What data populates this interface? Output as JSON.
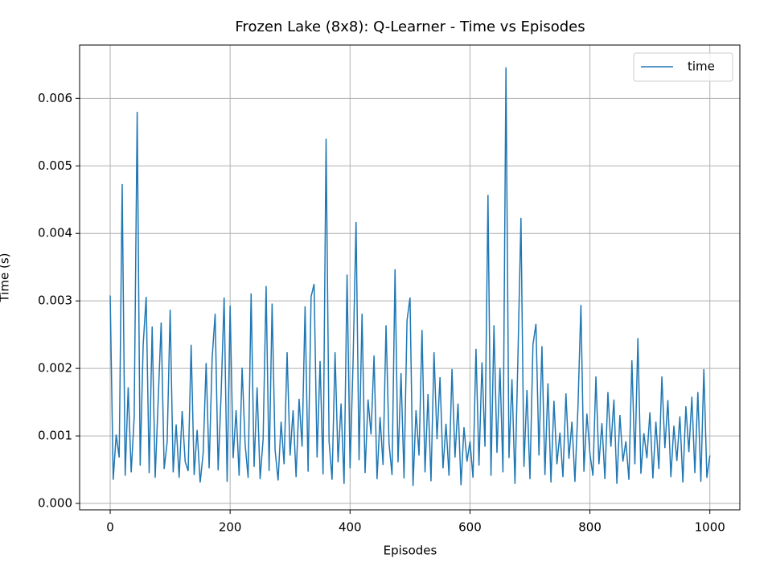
{
  "chart_data": {
    "type": "line",
    "title": "Frozen Lake (8x8): Q-Learner - Time vs Episodes",
    "x_label": "Episodes",
    "y_label": "Time (s)",
    "x": [
      0,
      5,
      10,
      15,
      20,
      25,
      30,
      35,
      40,
      45,
      50,
      55,
      60,
      65,
      70,
      75,
      80,
      85,
      90,
      95,
      100,
      105,
      110,
      115,
      120,
      125,
      130,
      135,
      140,
      145,
      150,
      155,
      160,
      165,
      170,
      175,
      180,
      185,
      190,
      195,
      200,
      205,
      210,
      215,
      220,
      225,
      230,
      235,
      240,
      245,
      250,
      255,
      260,
      265,
      270,
      275,
      280,
      285,
      290,
      295,
      300,
      305,
      310,
      315,
      320,
      325,
      330,
      335,
      340,
      345,
      350,
      355,
      360,
      365,
      370,
      375,
      380,
      385,
      390,
      395,
      400,
      405,
      410,
      415,
      420,
      425,
      430,
      435,
      440,
      445,
      450,
      455,
      460,
      465,
      470,
      475,
      480,
      485,
      490,
      495,
      500,
      505,
      510,
      515,
      520,
      525,
      530,
      535,
      540,
      545,
      550,
      555,
      560,
      565,
      570,
      575,
      580,
      585,
      590,
      595,
      600,
      605,
      610,
      615,
      620,
      625,
      630,
      635,
      640,
      645,
      650,
      655,
      660,
      665,
      670,
      675,
      680,
      685,
      690,
      695,
      700,
      705,
      710,
      715,
      720,
      725,
      730,
      735,
      740,
      745,
      750,
      755,
      760,
      765,
      770,
      775,
      780,
      785,
      790,
      795,
      800,
      805,
      810,
      815,
      820,
      825,
      830,
      835,
      840,
      845,
      850,
      855,
      860,
      865,
      870,
      875,
      880,
      885,
      890,
      895,
      900,
      905,
      910,
      915,
      920,
      925,
      930,
      935,
      940,
      945,
      950,
      955,
      960,
      965,
      970,
      975,
      980,
      985,
      990,
      995,
      1000
    ],
    "series": [
      {
        "name": "time",
        "color": "#1f77b4",
        "values": [
          0.00308,
          0.00035,
          0.00102,
          0.00068,
          0.00473,
          0.00041,
          0.00172,
          0.00046,
          0.00128,
          0.0058,
          0.00056,
          0.00235,
          0.00306,
          0.00045,
          0.00262,
          0.00038,
          0.00152,
          0.00268,
          0.00051,
          0.00091,
          0.00287,
          0.00046,
          0.00117,
          0.00038,
          0.00137,
          0.00062,
          0.00048,
          0.00235,
          0.00042,
          0.00109,
          0.00031,
          0.00074,
          0.00208,
          0.00052,
          0.00215,
          0.00281,
          0.00049,
          0.00162,
          0.00305,
          0.00032,
          0.00293,
          0.00067,
          0.00138,
          0.00041,
          0.00201,
          0.00088,
          0.00038,
          0.00311,
          0.00054,
          0.00172,
          0.00036,
          0.00095,
          0.00322,
          0.00048,
          0.00296,
          0.00079,
          0.00034,
          0.00121,
          0.00058,
          0.00224,
          0.00071,
          0.00138,
          0.00039,
          0.00155,
          0.00084,
          0.00292,
          0.00047,
          0.00306,
          0.00325,
          0.00068,
          0.00211,
          0.00043,
          0.0054,
          0.00092,
          0.00035,
          0.00224,
          0.00061,
          0.00148,
          0.00029,
          0.00339,
          0.00052,
          0.00208,
          0.00417,
          0.00064,
          0.00281,
          0.00045,
          0.00154,
          0.00102,
          0.00219,
          0.00036,
          0.00128,
          0.00057,
          0.00264,
          0.00089,
          0.00042,
          0.00347,
          0.00061,
          0.00193,
          0.00037,
          0.00271,
          0.00305,
          0.00026,
          0.00138,
          0.00071,
          0.00257,
          0.00046,
          0.00162,
          0.00033,
          0.00224,
          0.00095,
          0.00187,
          0.00052,
          0.00118,
          0.00041,
          0.00199,
          0.00068,
          0.00148,
          0.00027,
          0.00113,
          0.00062,
          0.00092,
          0.00038,
          0.00229,
          0.00056,
          0.00209,
          0.00084,
          0.00457,
          0.00041,
          0.00264,
          0.00075,
          0.00201,
          0.00046,
          0.00646,
          0.00067,
          0.00184,
          0.00029,
          0.00219,
          0.00423,
          0.00054,
          0.00168,
          0.00036,
          0.00235,
          0.00266,
          0.00071,
          0.00233,
          0.00042,
          0.00178,
          0.00031,
          0.00152,
          0.00058,
          0.00105,
          0.00039,
          0.00163,
          0.00066,
          0.00121,
          0.00032,
          0.00141,
          0.00294,
          0.00047,
          0.00133,
          0.00074,
          0.00041,
          0.00188,
          0.00058,
          0.00119,
          0.00036,
          0.00165,
          0.00084,
          0.00154,
          0.00029,
          0.00131,
          0.00062,
          0.00092,
          0.00035,
          0.00212,
          0.00058,
          0.00245,
          0.00044,
          0.00104,
          0.00067,
          0.00135,
          0.00037,
          0.00121,
          0.00051,
          0.00188,
          0.00082,
          0.00153,
          0.00039,
          0.00115,
          0.00063,
          0.00129,
          0.00031,
          0.00144,
          0.00076,
          0.00158,
          0.00045,
          0.00165,
          0.00032,
          0.00199,
          0.00038,
          0.00071
        ]
      }
    ],
    "xlim": [
      -51,
      1050
    ],
    "ylim": [
      -9.5e-05,
      0.00679
    ],
    "xticks": [
      0,
      200,
      400,
      600,
      800,
      1000
    ],
    "yticks": [
      {
        "value": 0,
        "label": "0.000"
      },
      {
        "value": 0.001,
        "label": "0.001"
      },
      {
        "value": 0.002,
        "label": "0.002"
      },
      {
        "value": 0.003,
        "label": "0.003"
      },
      {
        "value": 0.004,
        "label": "0.004"
      },
      {
        "value": 0.005,
        "label": "0.005"
      },
      {
        "value": 0.006,
        "label": "0.006"
      }
    ],
    "grid": true,
    "legend": "upper right"
  }
}
